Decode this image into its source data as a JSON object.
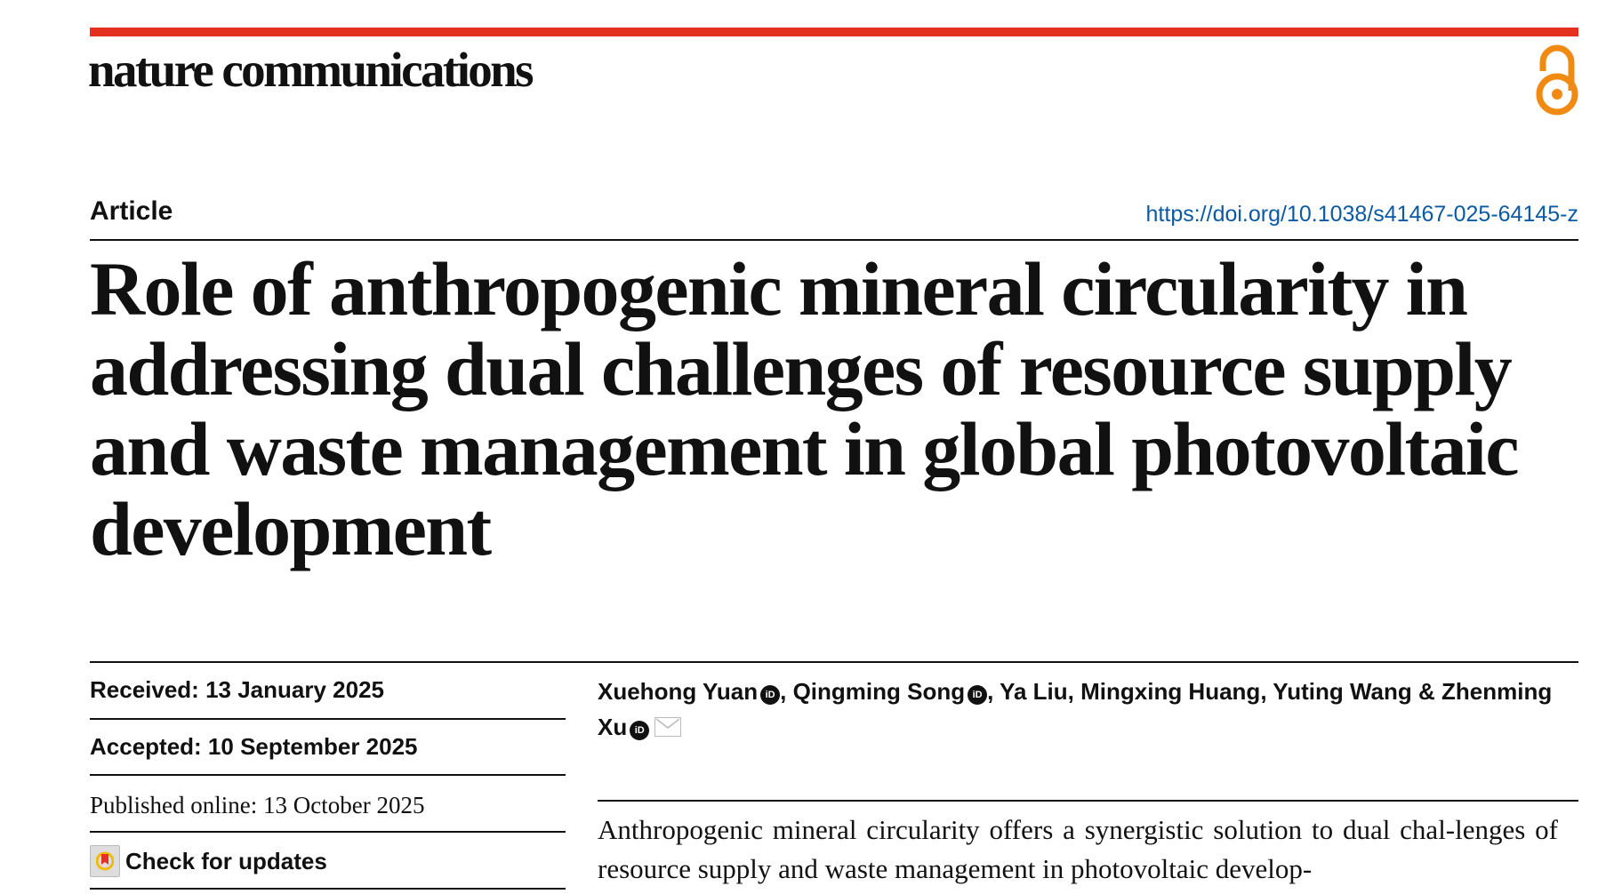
{
  "journal": {
    "name": "nature communications",
    "accent_color": "#e3301f",
    "open_access_icon": "open-access-lock-icon",
    "open_access_color": "#f08a12"
  },
  "article_type": "Article",
  "doi": "https://doi.org/10.1038/s41467-025-64145-z",
  "title": "Role of anthropogenic mineral circularity in addressing dual challenges of resource supply and waste management in global photovoltaic development",
  "dates": {
    "received": "Received: 13 January 2025",
    "accepted": "Accepted: 10 September 2025",
    "published": "Published online: 13 October 2025"
  },
  "check_updates": "Check for updates",
  "authors": [
    {
      "name": "Xuehong Yuan",
      "orcid": true,
      "sep": ", "
    },
    {
      "name": "Qingming Song",
      "orcid": true,
      "sep": ", "
    },
    {
      "name": "Ya Liu",
      "sep": ", "
    },
    {
      "name": "Mingxing Huang",
      "sep": ", "
    },
    {
      "name": "Yuting Wang",
      "sep": " & "
    },
    {
      "name": "Zhenming Xu",
      "orcid": true,
      "corresponding": true
    }
  ],
  "abstract": "Anthropogenic mineral circularity offers a synergistic solution to dual chal-lenges of resource supply and waste management in photovoltaic develop-"
}
